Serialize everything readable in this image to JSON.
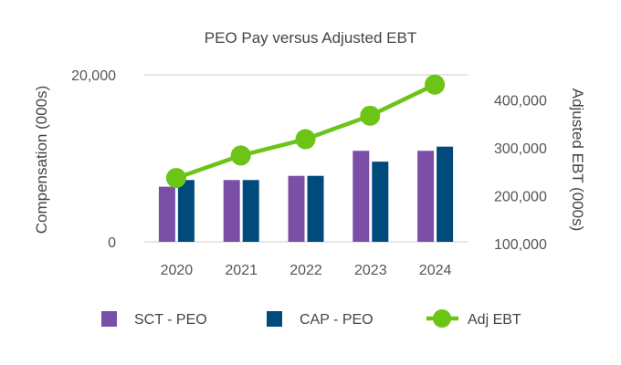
{
  "chart_data": {
    "type": "bar",
    "title": "PEO Pay versus Adjusted EBT",
    "categories": [
      "2020",
      "2021",
      "2022",
      "2023",
      "2024"
    ],
    "ylabel": "Compensation (000s)",
    "ylim": [
      0,
      20000
    ],
    "y_ticks": [
      "0",
      "20,000"
    ],
    "y2label": "Adjusted EBT (000s)",
    "y2lim": [
      100000,
      450000
    ],
    "y2_ticks": [
      "100,000",
      "200,000",
      "300,000",
      "400,000"
    ],
    "series": [
      {
        "name": "SCT - PEO",
        "type": "bar",
        "axis": "left",
        "color": "#7b4fa6",
        "values": [
          6600,
          7400,
          7900,
          10900,
          10900
        ]
      },
      {
        "name": "CAP - PEO",
        "type": "bar",
        "axis": "left",
        "color": "#004b7c",
        "values": [
          7400,
          7400,
          7900,
          9600,
          11400
        ]
      },
      {
        "name": "Adj EBT",
        "type": "line",
        "axis": "right",
        "color": "#6cc417",
        "values": [
          237000,
          284000,
          318000,
          367000,
          432000
        ]
      }
    ],
    "grid": "horizontal",
    "legend": "bottom"
  }
}
